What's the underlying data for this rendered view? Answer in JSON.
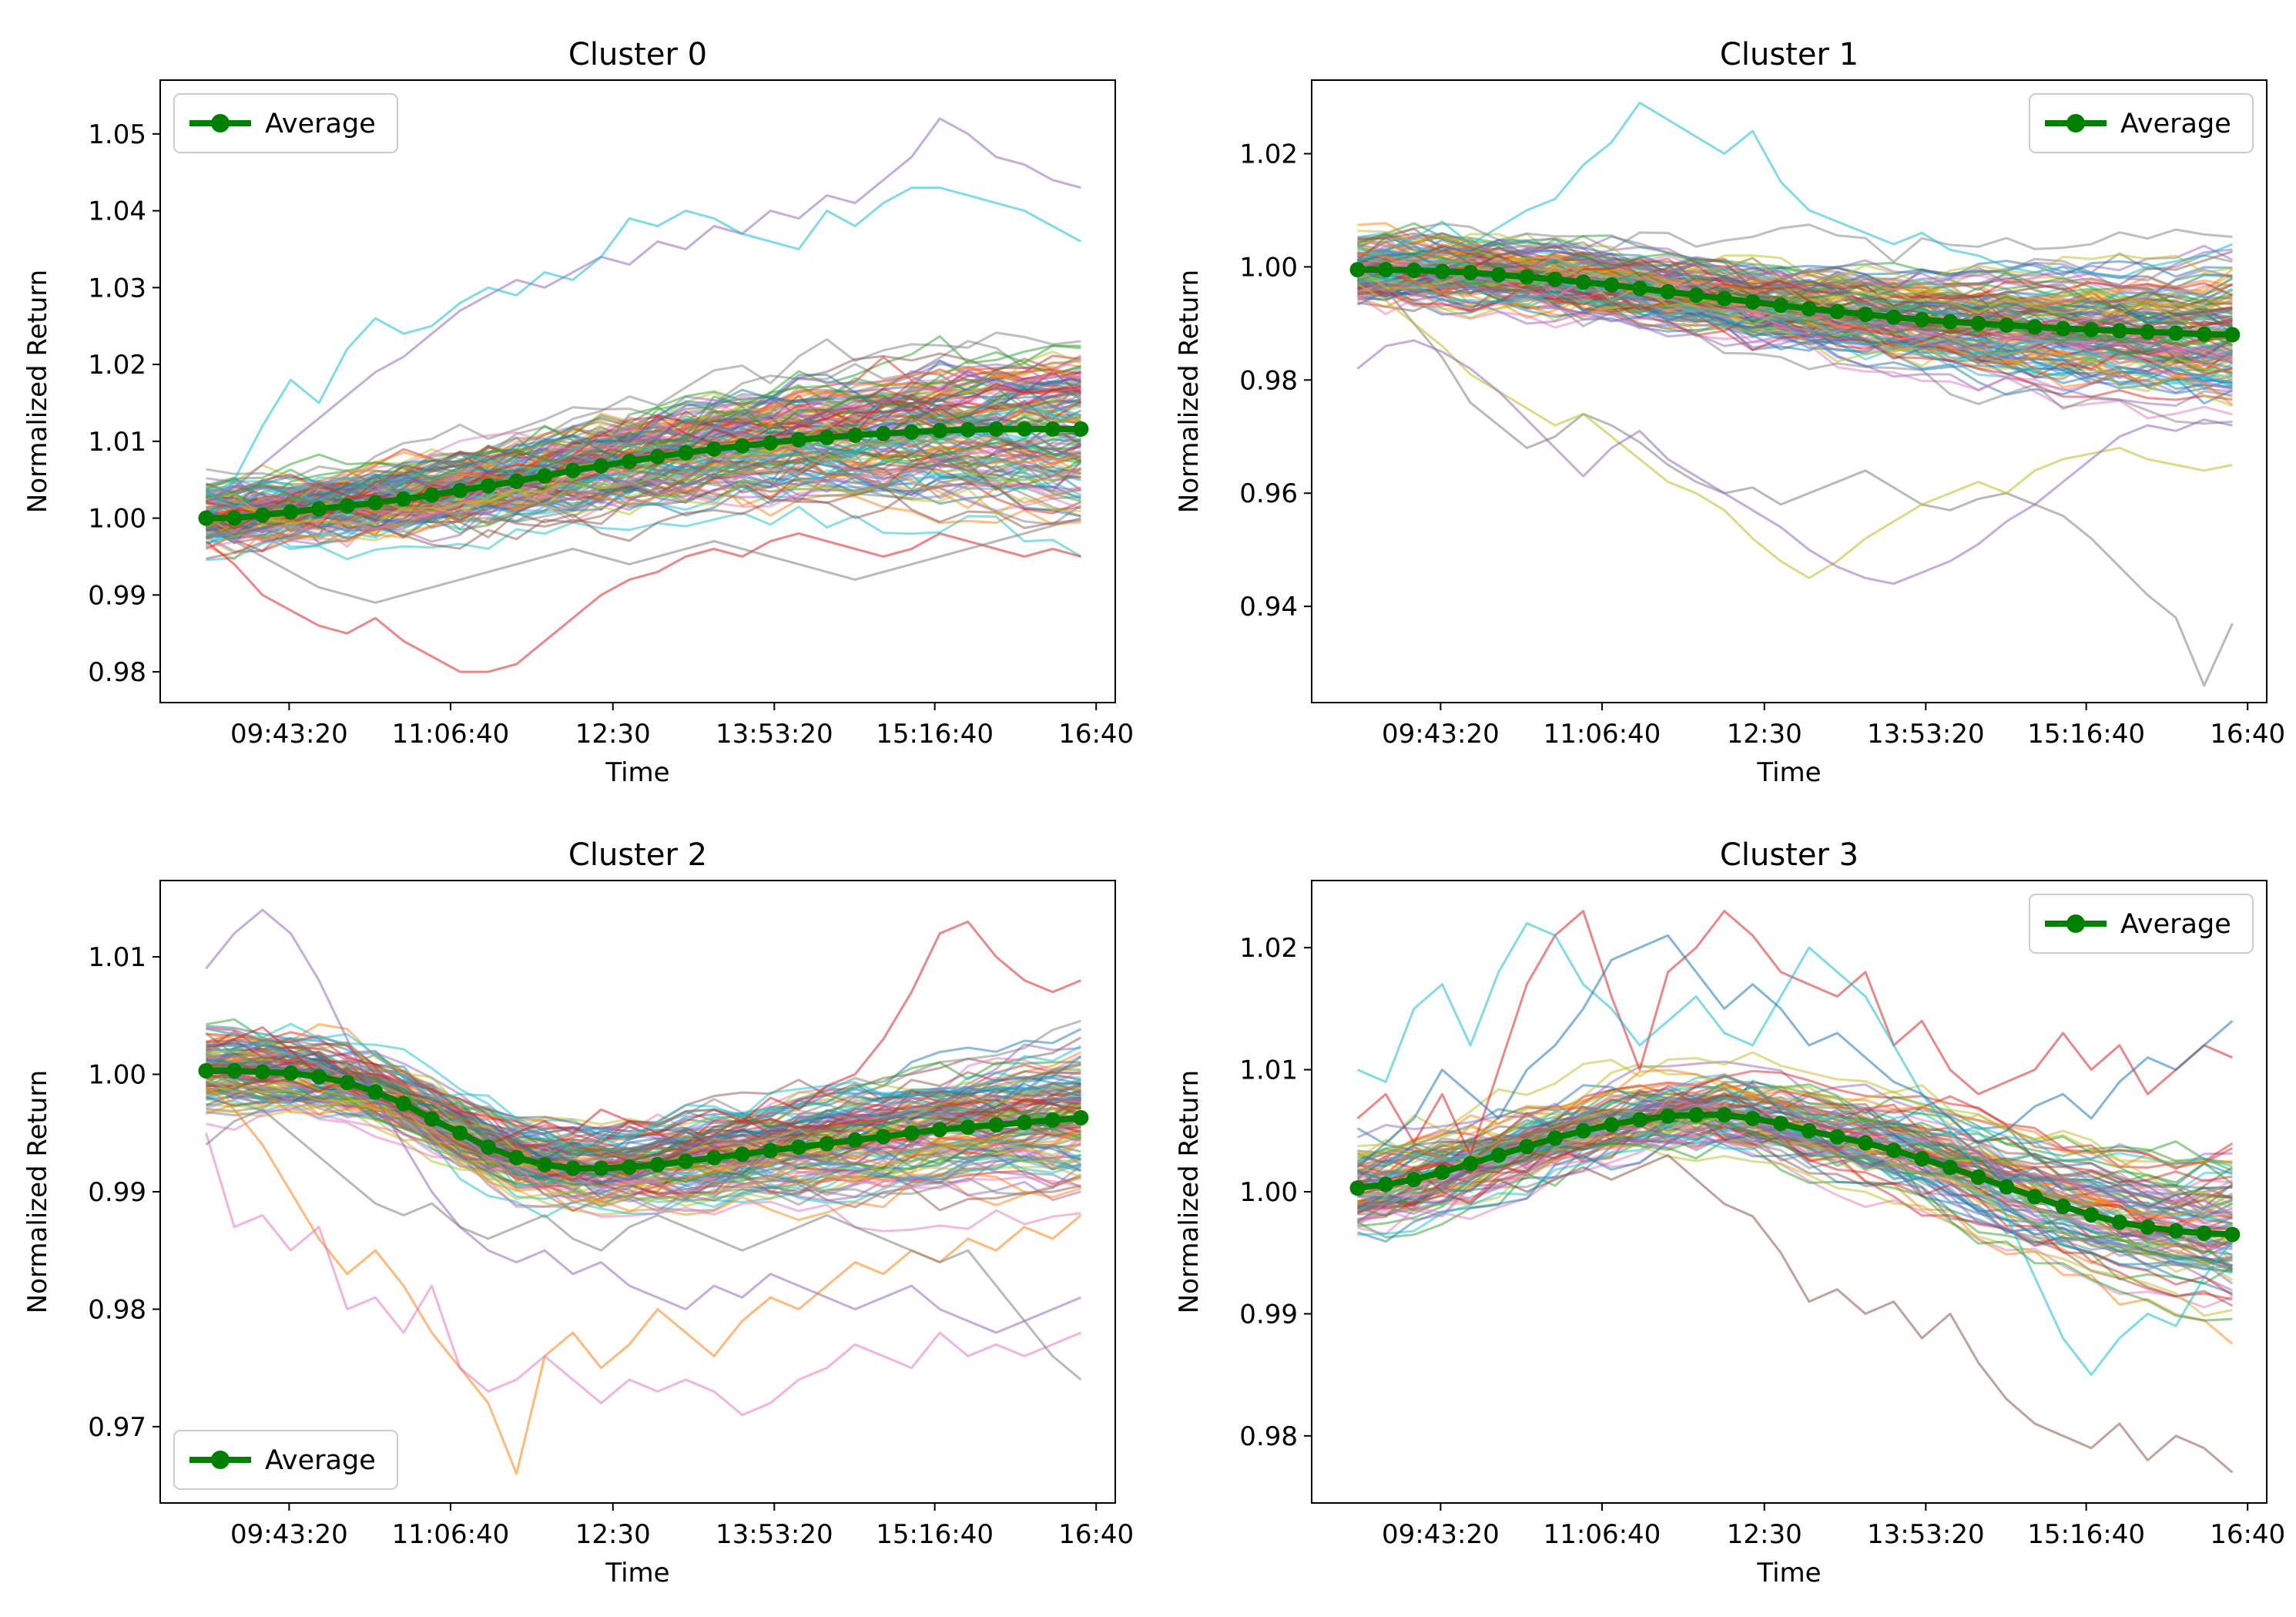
{
  "chart_data": [
    {
      "type": "line",
      "title": "Cluster 0",
      "xlabel": "Time",
      "ylabel": "Normalized Return",
      "x_ticks": [
        "09:43:20",
        "11:06:40",
        "12:30",
        "13:53:20",
        "15:16:40",
        "16:40"
      ],
      "y_ticks": [
        0.98,
        0.99,
        1.0,
        1.01,
        1.02,
        1.03,
        1.04,
        1.05
      ],
      "ylim": [
        0.976,
        1.057
      ],
      "legend": {
        "label": "Average",
        "position": "top-left"
      },
      "n_points": 32,
      "series": [
        {
          "name": "Average",
          "color": "#008000",
          "values": [
            1.0,
            1.0,
            1.0004,
            1.0008,
            1.0012,
            1.0016,
            1.002,
            1.0025,
            1.003,
            1.0036,
            1.0042,
            1.0048,
            1.0055,
            1.0062,
            1.0068,
            1.0074,
            1.008,
            1.0085,
            1.009,
            1.0094,
            1.0098,
            1.0102,
            1.0105,
            1.0108,
            1.011,
            1.0112,
            1.0114,
            1.0115,
            1.0116,
            1.0116,
            1.0116,
            1.0116
          ]
        }
      ],
      "trace_profile": {
        "count": 150,
        "start_spread": 0.003,
        "end_spread": 0.008,
        "seed": 11
      },
      "extreme_traces": [
        {
          "color": "#9467bd",
          "values": [
            1.002,
            1.004,
            1.007,
            1.01,
            1.013,
            1.016,
            1.019,
            1.021,
            1.024,
            1.027,
            1.029,
            1.031,
            1.03,
            1.032,
            1.034,
            1.033,
            1.036,
            1.035,
            1.038,
            1.037,
            1.04,
            1.039,
            1.042,
            1.041,
            1.044,
            1.047,
            1.052,
            1.05,
            1.047,
            1.046,
            1.044,
            1.043
          ]
        },
        {
          "color": "#17becf",
          "values": [
            1.0,
            1.005,
            1.012,
            1.018,
            1.015,
            1.022,
            1.026,
            1.024,
            1.025,
            1.028,
            1.03,
            1.029,
            1.032,
            1.031,
            1.034,
            1.039,
            1.038,
            1.04,
            1.039,
            1.037,
            1.036,
            1.035,
            1.04,
            1.038,
            1.041,
            1.043,
            1.043,
            1.042,
            1.041,
            1.04,
            1.038,
            1.036
          ]
        },
        {
          "color": "#d62728",
          "values": [
            0.997,
            0.994,
            0.99,
            0.988,
            0.986,
            0.985,
            0.987,
            0.984,
            0.982,
            0.98,
            0.98,
            0.981,
            0.984,
            0.987,
            0.99,
            0.992,
            0.993,
            0.995,
            0.996,
            0.995,
            0.997,
            0.998,
            0.997,
            0.996,
            0.995,
            0.996,
            0.998,
            0.997,
            0.996,
            0.995,
            0.996,
            0.995
          ]
        },
        {
          "color": "#7f7f7f",
          "values": [
            0.999,
            0.997,
            0.995,
            0.993,
            0.991,
            0.99,
            0.989,
            0.99,
            0.991,
            0.992,
            0.993,
            0.994,
            0.995,
            0.996,
            0.995,
            0.994,
            0.995,
            0.996,
            0.997,
            0.996,
            0.995,
            0.994,
            0.993,
            0.992,
            0.993,
            0.994,
            0.995,
            0.996,
            0.997,
            0.998,
            0.999,
            1.0
          ]
        }
      ]
    },
    {
      "type": "line",
      "title": "Cluster 1",
      "xlabel": "Time",
      "ylabel": "Normalized Return",
      "x_ticks": [
        "09:43:20",
        "11:06:40",
        "12:30",
        "13:53:20",
        "15:16:40",
        "16:40"
      ],
      "y_ticks": [
        0.94,
        0.96,
        0.98,
        1.0,
        1.02
      ],
      "ylim": [
        0.923,
        1.033
      ],
      "legend": {
        "label": "Average",
        "position": "top-right"
      },
      "n_points": 32,
      "series": [
        {
          "name": "Average",
          "color": "#008000",
          "values": [
            0.9995,
            0.9995,
            0.9994,
            0.9992,
            0.999,
            0.9986,
            0.9982,
            0.9978,
            0.9973,
            0.9968,
            0.9962,
            0.9956,
            0.995,
            0.9944,
            0.9938,
            0.9932,
            0.9926,
            0.9921,
            0.9916,
            0.9911,
            0.9907,
            0.9903,
            0.99,
            0.9897,
            0.9894,
            0.9891,
            0.9889,
            0.9887,
            0.9885,
            0.9883,
            0.9881,
            0.988
          ]
        }
      ],
      "trace_profile": {
        "count": 150,
        "start_spread": 0.004,
        "end_spread": 0.009,
        "seed": 23
      },
      "extreme_traces": [
        {
          "color": "#17becf",
          "values": [
            1.001,
            1.003,
            1.005,
            1.008,
            1.004,
            1.007,
            1.01,
            1.012,
            1.018,
            1.022,
            1.029,
            1.026,
            1.023,
            1.02,
            1.024,
            1.015,
            1.01,
            1.008,
            1.006,
            1.004,
            1.006,
            1.003,
            1.002,
            1.0,
            0.999,
            1.0,
            0.999,
            0.998,
            1.0,
            1.001,
            1.002,
            1.004
          ]
        },
        {
          "color": "#7f7f7f",
          "values": [
            0.998,
            0.996,
            0.99,
            0.984,
            0.976,
            0.972,
            0.968,
            0.97,
            0.974,
            0.972,
            0.969,
            0.965,
            0.962,
            0.96,
            0.961,
            0.958,
            0.96,
            0.962,
            0.964,
            0.961,
            0.958,
            0.957,
            0.959,
            0.96,
            0.958,
            0.956,
            0.952,
            0.947,
            0.942,
            0.938,
            0.926,
            0.937
          ]
        },
        {
          "color": "#bcbd22",
          "values": [
            0.997,
            0.994,
            0.99,
            0.986,
            0.981,
            0.978,
            0.975,
            0.972,
            0.974,
            0.97,
            0.966,
            0.962,
            0.96,
            0.957,
            0.952,
            0.948,
            0.945,
            0.948,
            0.952,
            0.955,
            0.958,
            0.96,
            0.962,
            0.96,
            0.964,
            0.966,
            0.967,
            0.968,
            0.966,
            0.965,
            0.964,
            0.965
          ]
        },
        {
          "color": "#9467bd",
          "values": [
            0.982,
            0.986,
            0.987,
            0.985,
            0.982,
            0.978,
            0.973,
            0.968,
            0.963,
            0.968,
            0.971,
            0.966,
            0.963,
            0.96,
            0.957,
            0.954,
            0.95,
            0.947,
            0.945,
            0.944,
            0.946,
            0.948,
            0.951,
            0.955,
            0.958,
            0.962,
            0.966,
            0.97,
            0.972,
            0.971,
            0.973,
            0.972
          ]
        }
      ]
    },
    {
      "type": "line",
      "title": "Cluster 2",
      "xlabel": "Time",
      "ylabel": "Normalized Return",
      "x_ticks": [
        "09:43:20",
        "11:06:40",
        "12:30",
        "13:53:20",
        "15:16:40",
        "16:40"
      ],
      "y_ticks": [
        0.97,
        0.98,
        0.99,
        1.0,
        1.01
      ],
      "ylim": [
        0.9635,
        1.0165
      ],
      "legend": {
        "label": "Average",
        "position": "bottom-left"
      },
      "n_points": 32,
      "series": [
        {
          "name": "Average",
          "color": "#008000",
          "values": [
            1.0003,
            1.0003,
            1.0002,
            1.0001,
            0.9998,
            0.9993,
            0.9985,
            0.9975,
            0.9962,
            0.995,
            0.9938,
            0.9929,
            0.9923,
            0.992,
            0.992,
            0.9921,
            0.9923,
            0.9926,
            0.9929,
            0.9932,
            0.9935,
            0.9938,
            0.9941,
            0.9944,
            0.9947,
            0.995,
            0.9953,
            0.9955,
            0.9957,
            0.9959,
            0.9961,
            0.9963
          ]
        }
      ],
      "trace_profile": {
        "count": 130,
        "start_spread": 0.002,
        "end_spread": 0.0045,
        "seed": 37
      },
      "extreme_traces": [
        {
          "color": "#ff7f0e",
          "values": [
            0.999,
            0.997,
            0.994,
            0.99,
            0.986,
            0.983,
            0.985,
            0.982,
            0.978,
            0.975,
            0.972,
            0.966,
            0.976,
            0.978,
            0.975,
            0.977,
            0.98,
            0.978,
            0.976,
            0.979,
            0.981,
            0.98,
            0.982,
            0.984,
            0.983,
            0.985,
            0.984,
            0.986,
            0.985,
            0.987,
            0.986,
            0.988
          ]
        },
        {
          "color": "#e377c2",
          "values": [
            0.995,
            0.987,
            0.988,
            0.985,
            0.987,
            0.98,
            0.981,
            0.978,
            0.982,
            0.975,
            0.973,
            0.974,
            0.976,
            0.974,
            0.972,
            0.974,
            0.973,
            0.974,
            0.973,
            0.971,
            0.972,
            0.974,
            0.975,
            0.977,
            0.976,
            0.975,
            0.978,
            0.976,
            0.977,
            0.976,
            0.977,
            0.978
          ]
        },
        {
          "color": "#d62728",
          "values": [
            1.002,
            1.003,
            1.004,
            1.002,
            1.0,
            0.999,
            0.998,
            0.997,
            0.996,
            0.995,
            0.994,
            0.995,
            0.996,
            0.995,
            0.997,
            0.996,
            0.995,
            0.996,
            0.997,
            0.996,
            0.998,
            0.997,
            0.999,
            1.0,
            1.003,
            1.007,
            1.012,
            1.013,
            1.01,
            1.008,
            1.007,
            1.008
          ]
        },
        {
          "color": "#9467bd",
          "values": [
            1.009,
            1.012,
            1.014,
            1.012,
            1.008,
            1.003,
            0.998,
            0.994,
            0.99,
            0.987,
            0.985,
            0.984,
            0.985,
            0.983,
            0.984,
            0.982,
            0.981,
            0.98,
            0.982,
            0.981,
            0.983,
            0.982,
            0.981,
            0.98,
            0.981,
            0.982,
            0.98,
            0.979,
            0.978,
            0.979,
            0.98,
            0.981
          ]
        },
        {
          "color": "#7f7f7f",
          "values": [
            0.994,
            0.996,
            0.997,
            0.995,
            0.993,
            0.991,
            0.989,
            0.988,
            0.989,
            0.987,
            0.986,
            0.987,
            0.988,
            0.986,
            0.985,
            0.987,
            0.988,
            0.987,
            0.986,
            0.985,
            0.986,
            0.987,
            0.988,
            0.987,
            0.986,
            0.985,
            0.984,
            0.985,
            0.982,
            0.979,
            0.976,
            0.974
          ]
        }
      ]
    },
    {
      "type": "line",
      "title": "Cluster 3",
      "xlabel": "Time",
      "ylabel": "Normalized Return",
      "x_ticks": [
        "09:43:20",
        "11:06:40",
        "12:30",
        "13:53:20",
        "15:16:40",
        "16:40"
      ],
      "y_ticks": [
        0.98,
        0.99,
        1.0,
        1.01,
        1.02
      ],
      "ylim": [
        0.9745,
        1.0255
      ],
      "legend": {
        "label": "Average",
        "position": "top-right"
      },
      "n_points": 32,
      "series": [
        {
          "name": "Average",
          "color": "#008000",
          "values": [
            1.0003,
            1.0006,
            1.001,
            1.0016,
            1.0023,
            1.003,
            1.0037,
            1.0044,
            1.005,
            1.0055,
            1.0059,
            1.0062,
            1.0063,
            1.0063,
            1.006,
            1.0056,
            1.005,
            1.0045,
            1.004,
            1.0034,
            1.0027,
            1.002,
            1.0012,
            1.0004,
            0.9996,
            0.9988,
            0.9981,
            0.9975,
            0.9971,
            0.9968,
            0.9966,
            0.9965
          ]
        }
      ],
      "trace_profile": {
        "count": 100,
        "start_spread": 0.0025,
        "end_spread": 0.0045,
        "seed": 53
      },
      "extreme_traces": [
        {
          "color": "#d62728",
          "values": [
            1.006,
            1.008,
            1.004,
            1.008,
            1.003,
            1.01,
            1.017,
            1.021,
            1.023,
            1.016,
            1.01,
            1.018,
            1.02,
            1.023,
            1.021,
            1.018,
            1.017,
            1.016,
            1.018,
            1.012,
            1.014,
            1.01,
            1.008,
            1.009,
            1.01,
            1.013,
            1.01,
            1.012,
            1.008,
            1.01,
            1.012,
            1.011
          ]
        },
        {
          "color": "#17becf",
          "values": [
            1.01,
            1.009,
            1.015,
            1.017,
            1.012,
            1.018,
            1.022,
            1.021,
            1.017,
            1.015,
            1.012,
            1.014,
            1.016,
            1.013,
            1.012,
            1.016,
            1.02,
            1.018,
            1.016,
            1.012,
            1.008,
            1.005,
            1.002,
            0.998,
            0.993,
            0.988,
            0.985,
            0.988,
            0.99,
            0.989,
            0.993,
            0.996
          ]
        },
        {
          "color": "#8c564b",
          "values": [
            1.001,
            1.0,
            1.002,
            1.0,
            0.999,
            1.001,
            1.0,
            1.001,
            1.002,
            1.001,
            1.002,
            1.003,
            1.001,
            0.999,
            0.998,
            0.995,
            0.991,
            0.992,
            0.99,
            0.991,
            0.988,
            0.99,
            0.986,
            0.983,
            0.981,
            0.98,
            0.979,
            0.981,
            0.978,
            0.98,
            0.979,
            0.977
          ]
        },
        {
          "color": "#1f77b4",
          "values": [
            1.002,
            1.004,
            1.006,
            1.01,
            1.008,
            1.006,
            1.01,
            1.012,
            1.015,
            1.019,
            1.02,
            1.021,
            1.018,
            1.015,
            1.017,
            1.015,
            1.012,
            1.013,
            1.011,
            1.009,
            1.008,
            1.006,
            1.004,
            1.005,
            1.007,
            1.008,
            1.006,
            1.009,
            1.011,
            1.01,
            1.012,
            1.014
          ]
        }
      ]
    }
  ]
}
